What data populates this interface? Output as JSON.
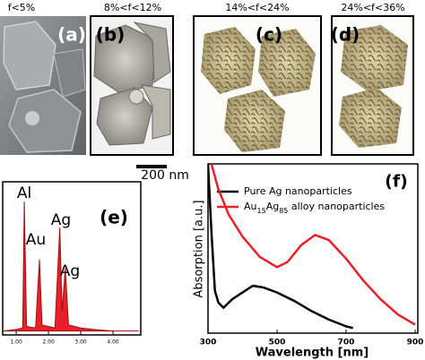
{
  "top_panels": [
    {
      "caption": "f<5%",
      "label": "(a)"
    },
    {
      "caption": "8%<f<12%",
      "label": "(b)"
    },
    {
      "caption": "14%<f<24%",
      "label": "(c)"
    },
    {
      "caption": "24%<f<36%",
      "label": "(d)"
    }
  ],
  "scale_bar": "200 nm",
  "chart_data": [
    {
      "type": "spectrum",
      "label": "(e)",
      "color": "#e8202a",
      "annotations": [
        "Al",
        "Au",
        "Ag",
        "Ag"
      ],
      "xlim": [
        0.58,
        4.86
      ],
      "ylim": [
        0,
        1
      ],
      "xticks": [
        {
          "value": 1,
          "label": "1.00"
        },
        {
          "value": 2,
          "label": "2.00"
        },
        {
          "value": 3,
          "label": "3.00"
        },
        {
          "value": 4,
          "label": "4.00"
        }
      ],
      "x": [
        0.6,
        1.0,
        1.2,
        1.25,
        1.32,
        1.6,
        1.72,
        1.8,
        2.2,
        2.35,
        2.42,
        2.52,
        2.62,
        3.0,
        3.4,
        4.0,
        4.8
      ],
      "values": [
        0.02,
        0.03,
        0.04,
        0.87,
        0.05,
        0.04,
        0.49,
        0.06,
        0.04,
        0.7,
        0.15,
        0.43,
        0.06,
        0.04,
        0.03,
        0.02,
        0.02
      ]
    },
    {
      "type": "line",
      "label": "(f)",
      "xlabel": "Wavelength [nm]",
      "ylabel": "Absorption [a.u.]",
      "xlim": [
        300,
        900
      ],
      "xticks": [
        300,
        500,
        700,
        900
      ],
      "ylim": [
        0,
        1
      ],
      "series": [
        {
          "name": "Pure Ag nanoparticles",
          "color": "#000000",
          "x": [
            300,
            310,
            320,
            330,
            345,
            370,
            400,
            430,
            460,
            500,
            550,
            600,
            650,
            700,
            720
          ],
          "values": [
            1.0,
            0.6,
            0.25,
            0.18,
            0.15,
            0.2,
            0.24,
            0.28,
            0.27,
            0.24,
            0.19,
            0.13,
            0.08,
            0.04,
            0.03
          ]
        },
        {
          "name": "Au15Ag85 alloy nanoparticles",
          "color": "#e8202a",
          "x": [
            310,
            330,
            360,
            400,
            450,
            500,
            530,
            570,
            610,
            650,
            700,
            750,
            800,
            850,
            900
          ],
          "values": [
            1.0,
            0.85,
            0.7,
            0.57,
            0.45,
            0.39,
            0.42,
            0.52,
            0.58,
            0.55,
            0.44,
            0.31,
            0.2,
            0.11,
            0.05
          ]
        }
      ]
    }
  ]
}
